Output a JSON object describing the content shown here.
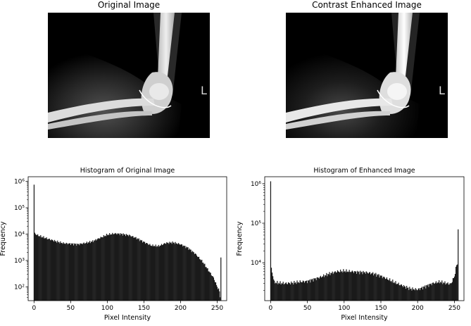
{
  "images": {
    "original_title": "Original Image",
    "enhanced_title": "Contrast Enhanced Image",
    "marker_letter": "L"
  },
  "chart_data": [
    {
      "type": "bar",
      "title": "Histogram of Original Image",
      "xlabel": "Pixel Intensity",
      "ylabel": "Frequency",
      "yscale": "log",
      "xlim": [
        -8,
        263
      ],
      "ylim": [
        30,
        1500000
      ],
      "xticks": [
        0,
        50,
        100,
        150,
        200,
        250
      ],
      "yticks": [
        {
          "value": 100,
          "label": "10²"
        },
        {
          "value": 1000,
          "label": "10³"
        },
        {
          "value": 10000,
          "label": "10⁴"
        },
        {
          "value": 100000,
          "label": "10⁵"
        },
        {
          "value": 1000000,
          "label": "10⁶"
        }
      ],
      "spikes": [
        {
          "x": 0,
          "y": 750000
        },
        {
          "x": 255,
          "y": 1300
        }
      ],
      "bins_x": [
        0,
        5,
        10,
        20,
        30,
        40,
        50,
        60,
        70,
        80,
        90,
        100,
        110,
        120,
        130,
        140,
        150,
        160,
        170,
        180,
        190,
        200,
        210,
        220,
        230,
        240,
        245,
        250,
        253,
        254
      ],
      "bins_y": [
        11000,
        9000,
        8000,
        6500,
        5300,
        4500,
        4300,
        4100,
        4600,
        5300,
        7200,
        9500,
        10500,
        10000,
        9000,
        7000,
        5000,
        3700,
        3500,
        4600,
        4800,
        4100,
        3000,
        1800,
        900,
        350,
        220,
        100,
        70,
        40
      ],
      "bar_color": "#1a1a1a"
    },
    {
      "type": "bar",
      "title": "Histogram of Enhanced Image",
      "xlabel": "Pixel Intensity",
      "ylabel": "Frequency",
      "yscale": "log",
      "xlim": [
        -8,
        263
      ],
      "ylim": [
        1100,
        1500000
      ],
      "xticks": [
        0,
        50,
        100,
        150,
        200,
        250
      ],
      "yticks": [
        {
          "value": 10000,
          "label": "10⁴"
        },
        {
          "value": 100000,
          "label": "10⁵"
        },
        {
          "value": 1000000,
          "label": "10⁶"
        }
      ],
      "spikes": [
        {
          "x": 0,
          "y": 1150000
        },
        {
          "x": 255,
          "y": 70000
        }
      ],
      "bins_x": [
        1,
        5,
        10,
        20,
        30,
        40,
        50,
        60,
        70,
        80,
        90,
        100,
        110,
        120,
        130,
        140,
        150,
        160,
        170,
        180,
        190,
        200,
        210,
        220,
        230,
        240,
        245,
        250,
        253
      ],
      "bins_y": [
        7000,
        3200,
        3100,
        3000,
        3100,
        3300,
        3400,
        3900,
        4500,
        5300,
        6000,
        6200,
        6000,
        5800,
        5700,
        5300,
        4600,
        3800,
        3100,
        2600,
        2200,
        2100,
        2500,
        3000,
        3300,
        3000,
        2900,
        4500,
        9000
      ],
      "bar_color": "#1a1a1a"
    }
  ]
}
